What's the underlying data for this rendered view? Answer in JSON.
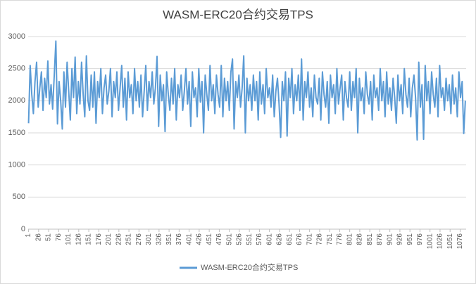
{
  "chart_data": {
    "type": "line",
    "title": "WASM-ERC20合约交易TPS",
    "x": [
      1,
      5,
      9,
      13,
      17,
      21,
      25,
      29,
      33,
      37,
      41,
      45,
      49,
      53,
      57,
      61,
      65,
      69,
      73,
      77,
      81,
      85,
      89,
      93,
      97,
      101,
      105,
      109,
      113,
      117,
      121,
      125,
      129,
      133,
      137,
      141,
      145,
      149,
      153,
      157,
      161,
      165,
      169,
      173,
      177,
      181,
      185,
      189,
      193,
      197,
      201,
      205,
      209,
      213,
      217,
      221,
      225,
      229,
      233,
      237,
      241,
      245,
      249,
      253,
      257,
      261,
      265,
      269,
      273,
      277,
      281,
      285,
      289,
      293,
      297,
      301,
      305,
      309,
      313,
      317,
      321,
      325,
      329,
      333,
      337,
      341,
      345,
      349,
      353,
      357,
      361,
      365,
      369,
      373,
      377,
      381,
      385,
      389,
      393,
      397,
      401,
      405,
      409,
      413,
      417,
      421,
      425,
      429,
      433,
      437,
      441,
      445,
      449,
      453,
      457,
      461,
      465,
      469,
      473,
      477,
      481,
      485,
      489,
      493,
      497,
      501,
      505,
      509,
      513,
      517,
      521,
      525,
      529,
      533,
      537,
      541,
      545,
      549,
      553,
      557,
      561,
      565,
      569,
      573,
      577,
      581,
      585,
      589,
      593,
      597,
      601,
      605,
      609,
      613,
      617,
      621,
      625,
      629,
      633,
      637,
      641,
      645,
      649,
      653,
      657,
      661,
      665,
      669,
      673,
      677,
      681,
      685,
      689,
      693,
      697,
      701,
      705,
      709,
      713,
      717,
      721,
      725,
      729,
      733,
      737,
      741,
      745,
      749,
      753,
      757,
      761,
      765,
      769,
      773,
      777,
      781,
      785,
      789,
      793,
      797,
      801,
      805,
      809,
      813,
      817,
      821,
      825,
      829,
      833,
      837,
      841,
      845,
      849,
      853,
      857,
      861,
      865,
      869,
      873,
      877,
      881,
      885,
      889,
      893,
      897,
      901,
      905,
      909,
      913,
      917,
      921,
      925,
      929,
      933,
      937,
      941,
      945,
      949,
      953,
      957,
      961,
      965,
      969,
      973,
      977,
      981,
      985,
      989,
      993,
      997,
      1001,
      1005,
      1009,
      1013,
      1017,
      1021,
      1025,
      1029,
      1033,
      1037,
      1041,
      1045,
      1049,
      1053,
      1057,
      1061,
      1065,
      1069,
      1073,
      1077,
      1081,
      1085,
      1089
    ],
    "series": [
      {
        "name": "WASM-ERC20合约交易TPS",
        "color": "#5b9bd5",
        "values": [
          1650,
          2550,
          2100,
          1800,
          2300,
          2600,
          1900,
          2200,
          2450,
          1850,
          2350,
          2050,
          2620,
          1950,
          2250,
          1870,
          2400,
          2930,
          1640,
          2300,
          2000,
          1560,
          2450,
          1900,
          2600,
          2150,
          1700,
          2500,
          2050,
          2680,
          1800,
          2300,
          1950,
          2600,
          2100,
          1750,
          2700,
          2000,
          1850,
          2400,
          1900,
          2450,
          1650,
          2300,
          2050,
          2500,
          1800,
          2200,
          2400,
          1950,
          2150,
          2500,
          1750,
          2300,
          2050,
          2450,
          1850,
          2200,
          2550,
          1900,
          2350,
          1700,
          2450,
          2050,
          2250,
          1800,
          2500,
          2000,
          2300,
          1900,
          2400,
          1750,
          2150,
          2550,
          1850,
          2300,
          2050,
          2450,
          1950,
          2200,
          2690,
          1600,
          2400,
          2000,
          2250,
          1520,
          2450,
          2100,
          1850,
          2350,
          1950,
          2500,
          1700,
          2250,
          2050,
          2400,
          1850,
          2150,
          2500,
          1950,
          2300,
          1600,
          2450,
          2050,
          2200,
          1750,
          2500,
          1980,
          2300,
          1500,
          2400,
          2100,
          1850,
          2550,
          2000,
          2250,
          1800,
          2400,
          2100,
          1900,
          2550,
          1750,
          2350,
          2000,
          2300,
          1850,
          2450,
          2650,
          1560,
          2300,
          2050,
          2400,
          1900,
          2200,
          2700,
          1500,
          2350,
          2000,
          2250,
          1850,
          2400,
          2000,
          2300,
          1700,
          2450,
          1950,
          2250,
          1800,
          2500,
          2050,
          2200,
          1900,
          2400,
          1750,
          2150,
          2350,
          1950,
          1430,
          2300,
          2000,
          2450,
          1450,
          2350,
          2050,
          2500,
          1800,
          2250,
          2000,
          2400,
          1850,
          2650,
          1700,
          2300,
          2050,
          2450,
          1900,
          2200,
          1750,
          2400,
          2050,
          1950,
          2350,
          1700,
          2450,
          2100,
          1900,
          2300,
          1650,
          2400,
          2050,
          2250,
          1800,
          2500,
          1950,
          2200,
          2400,
          1700,
          2300,
          2050,
          1900,
          2450,
          1850,
          2300,
          2050,
          2500,
          1500,
          2350,
          2000,
          2200,
          1800,
          2450,
          2100,
          1950,
          2300,
          1700,
          2400,
          2050,
          2200,
          1850,
          2500,
          2000,
          2300,
          1750,
          2450,
          1950,
          2200,
          1850,
          2350,
          2050,
          1650,
          2400,
          2000,
          2250,
          1800,
          2500,
          2100,
          1900,
          2350,
          1750,
          2200,
          2400,
          2050,
          1390,
          2600,
          1900,
          2250,
          1400,
          2550,
          2000,
          2300,
          1800,
          2450,
          2100,
          1900,
          2350,
          1750,
          2550,
          2050,
          2200,
          1850,
          2350,
          2000,
          2250,
          1800,
          2400,
          1950,
          2200,
          1750,
          2450,
          2050,
          2300,
          1490,
          2000
        ]
      }
    ],
    "xlim": [
      0,
      1091
    ],
    "xticks": [
      1,
      26,
      51,
      76,
      101,
      126,
      151,
      176,
      201,
      226,
      251,
      276,
      301,
      326,
      351,
      376,
      401,
      426,
      451,
      476,
      501,
      526,
      551,
      576,
      601,
      626,
      651,
      676,
      701,
      726,
      751,
      776,
      801,
      826,
      851,
      876,
      901,
      926,
      951,
      976,
      1001,
      1026,
      1051,
      1076
    ],
    "ylim": [
      0,
      3000
    ],
    "yticks": [
      0,
      500,
      1000,
      1500,
      2000,
      2500,
      3000
    ],
    "grid": true,
    "legend": "bottom"
  }
}
